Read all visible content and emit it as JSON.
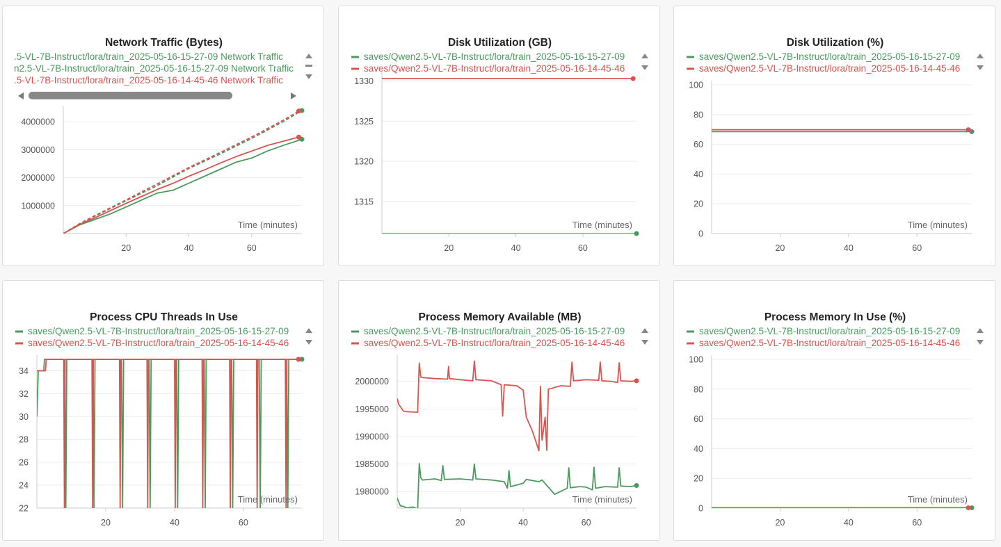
{
  "colors": {
    "green": "#4a9a5e",
    "red": "#d9534f",
    "grid": "#ececec",
    "axis": "#cccccc"
  },
  "panels": [
    {
      "title": "Network Traffic (Bytes)",
      "legend": [
        {
          "text": ".5-VL-7B-Instruct/lora/train_2025-05-16-15-27-09 Network Traffic",
          "color": "green"
        },
        {
          "text": "n2.5-VL-7B-Instruct/lora/train_2025-05-16-15-27-09 Network Traffic",
          "color": "green"
        },
        {
          "text": ".5-VL-7B-Instruct/lora/train_2025-05-16-14-45-46 Network Traffic",
          "color": "red"
        }
      ],
      "xlabel": "Time (minutes)"
    },
    {
      "title": "Disk Utilization (GB)",
      "legend": [
        {
          "text": "saves/Qwen2.5-VL-7B-Instruct/lora/train_2025-05-16-15-27-09",
          "color": "green"
        },
        {
          "text": "saves/Qwen2.5-VL-7B-Instruct/lora/train_2025-05-16-14-45-46",
          "color": "red"
        }
      ],
      "xlabel": "Time (minutes)"
    },
    {
      "title": "Disk Utilization (%)",
      "legend": [
        {
          "text": "saves/Qwen2.5-VL-7B-Instruct/lora/train_2025-05-16-15-27-09",
          "color": "green"
        },
        {
          "text": "saves/Qwen2.5-VL-7B-Instruct/lora/train_2025-05-16-14-45-46",
          "color": "red"
        }
      ],
      "xlabel": "Time (minutes)"
    },
    {
      "title": "Process CPU Threads In Use",
      "legend": [
        {
          "text": "saves/Qwen2.5-VL-7B-Instruct/lora/train_2025-05-16-15-27-09",
          "color": "green"
        },
        {
          "text": "saves/Qwen2.5-VL-7B-Instruct/lora/train_2025-05-16-14-45-46",
          "color": "red"
        }
      ],
      "xlabel": "Time (minutes)"
    },
    {
      "title": "Process Memory Available (MB)",
      "legend": [
        {
          "text": "saves/Qwen2.5-VL-7B-Instruct/lora/train_2025-05-16-15-27-09",
          "color": "green"
        },
        {
          "text": "saves/Qwen2.5-VL-7B-Instruct/lora/train_2025-05-16-14-45-46",
          "color": "red"
        }
      ],
      "xlabel": "Time (minutes)"
    },
    {
      "title": "Process Memory In Use (%)",
      "legend": [
        {
          "text": "saves/Qwen2.5-VL-7B-Instruct/lora/train_2025-05-16-15-27-09",
          "color": "green"
        },
        {
          "text": "saves/Qwen2.5-VL-7B-Instruct/lora/train_2025-05-16-14-45-46",
          "color": "red"
        }
      ],
      "xlabel": "Time (minutes)"
    }
  ],
  "chart_data": [
    {
      "type": "line",
      "title": "Network Traffic (Bytes)",
      "xlabel": "Time (minutes)",
      "ylabel": "",
      "xlim": [
        0,
        76
      ],
      "ylim": [
        0,
        4400000
      ],
      "xticks": [
        20,
        40,
        60
      ],
      "yticks": [
        1000000,
        2000000,
        3000000,
        4000000
      ],
      "ytick_labels": [
        "1000000",
        "2000000",
        "3000000",
        "4000000"
      ],
      "series": [
        {
          "name": "train_2025-05-16-15-27-09 Network Traffic (sent)",
          "color": "green",
          "dash": true,
          "x": [
            0,
            5,
            10,
            20,
            30,
            40,
            50,
            60,
            70,
            76
          ],
          "y": [
            0,
            330000,
            620000,
            1170000,
            1720000,
            2330000,
            2850000,
            3400000,
            4000000,
            4400000
          ]
        },
        {
          "name": "train_2025-05-16-15-27-09 Network Traffic (recv)",
          "color": "green",
          "dash": false,
          "x": [
            0,
            5,
            10,
            15,
            20,
            25,
            30,
            35,
            40,
            45,
            50,
            55,
            60,
            65,
            70,
            76
          ],
          "y": [
            0,
            300000,
            500000,
            700000,
            950000,
            1200000,
            1450000,
            1550000,
            1800000,
            2050000,
            2300000,
            2550000,
            2700000,
            2950000,
            3150000,
            3370000
          ]
        },
        {
          "name": "train_2025-05-16-14-45-46 Network Traffic (sent)",
          "color": "red",
          "dash": true,
          "x": [
            0,
            5,
            10,
            20,
            30,
            40,
            50,
            60,
            70,
            75
          ],
          "y": [
            0,
            340000,
            640000,
            1200000,
            1780000,
            2360000,
            2900000,
            3450000,
            4050000,
            4380000
          ]
        },
        {
          "name": "train_2025-05-16-14-45-46 Network Traffic (recv)",
          "color": "red",
          "dash": false,
          "x": [
            0,
            5,
            10,
            15,
            20,
            25,
            30,
            35,
            40,
            45,
            50,
            55,
            60,
            65,
            70,
            75
          ],
          "y": [
            0,
            320000,
            560000,
            820000,
            1080000,
            1330000,
            1580000,
            1800000,
            2050000,
            2280000,
            2520000,
            2750000,
            2950000,
            3150000,
            3300000,
            3450000
          ]
        }
      ]
    },
    {
      "type": "line",
      "title": "Disk Utilization (GB)",
      "xlabel": "Time (minutes)",
      "ylabel": "",
      "xlim": [
        0,
        76
      ],
      "ylim": [
        1311,
        1331
      ],
      "xticks": [
        20,
        40,
        60
      ],
      "yticks": [
        1315,
        1320,
        1325,
        1330
      ],
      "ytick_labels": [
        "1315",
        "1320",
        "1325",
        "1330"
      ],
      "series": [
        {
          "name": "saves/Qwen2.5-VL-7B-Instruct/lora/train_2025-05-16-15-27-09",
          "color": "green",
          "x": [
            0,
            76
          ],
          "y": [
            1311,
            1311
          ]
        },
        {
          "name": "saves/Qwen2.5-VL-7B-Instruct/lora/train_2025-05-16-14-45-46",
          "color": "red",
          "x": [
            0,
            75
          ],
          "y": [
            1330.3,
            1330.3
          ]
        }
      ]
    },
    {
      "type": "line",
      "title": "Disk Utilization (%)",
      "xlabel": "Time (minutes)",
      "ylabel": "",
      "xlim": [
        0,
        76
      ],
      "ylim": [
        0,
        100
      ],
      "xticks": [
        20,
        40,
        60
      ],
      "yticks": [
        0,
        20,
        40,
        60,
        80,
        100
      ],
      "ytick_labels": [
        "0",
        "20",
        "40",
        "60",
        "80",
        "100"
      ],
      "series": [
        {
          "name": "saves/Qwen2.5-VL-7B-Instruct/lora/train_2025-05-16-15-27-09",
          "color": "green",
          "x": [
            0,
            76
          ],
          "y": [
            68.5,
            68.5
          ]
        },
        {
          "name": "saves/Qwen2.5-VL-7B-Instruct/lora/train_2025-05-16-14-45-46",
          "color": "red",
          "x": [
            0,
            75
          ],
          "y": [
            69.8,
            69.8
          ]
        }
      ]
    },
    {
      "type": "line",
      "title": "Process CPU Threads In Use",
      "xlabel": "Time (minutes)",
      "ylabel": "",
      "xlim": [
        0,
        77
      ],
      "ylim": [
        22,
        35
      ],
      "xticks": [
        20,
        40,
        60
      ],
      "yticks": [
        22,
        24,
        26,
        28,
        30,
        32,
        34
      ],
      "ytick_labels": [
        "22",
        "24",
        "26",
        "28",
        "30",
        "32",
        "34"
      ],
      "series": [
        {
          "name": "saves/Qwen2.5-VL-7B-Instruct/lora/train_2025-05-16-15-27-09",
          "color": "green",
          "x": [
            0,
            0.4,
            2,
            2.2,
            8.1,
            8.4,
            8.7,
            16.3,
            16.6,
            16.9,
            24.6,
            24.9,
            25.2,
            32.6,
            32.9,
            33.2,
            40.6,
            40.9,
            41.2,
            48.6,
            48.9,
            49.2,
            56.6,
            56.9,
            57.2,
            64.6,
            64.9,
            65.2,
            72.6,
            72.9,
            73.2,
            77
          ],
          "y": [
            30,
            34,
            34,
            35,
            35,
            22,
            35,
            35,
            22,
            35,
            35,
            22,
            35,
            35,
            22,
            35,
            35,
            22,
            35,
            35,
            22,
            35,
            35,
            22,
            35,
            35,
            22,
            35,
            35,
            22,
            35,
            35
          ]
        },
        {
          "name": "saves/Qwen2.5-VL-7B-Instruct/lora/train_2025-05-16-14-45-46",
          "color": "red",
          "x": [
            0,
            2.5,
            2.7,
            7.8,
            8.0,
            8.2,
            16.0,
            16.2,
            16.4,
            24.0,
            24.2,
            24.4,
            32.0,
            32.2,
            32.4,
            40.0,
            40.2,
            40.4,
            48.0,
            48.2,
            48.4,
            56.0,
            56.2,
            56.4,
            63.8,
            64.0,
            64.2,
            72.2,
            72.4,
            72.6,
            76
          ],
          "y": [
            34,
            34,
            35,
            35,
            22,
            35,
            35,
            22,
            35,
            35,
            22,
            35,
            35,
            22,
            35,
            35,
            22,
            35,
            35,
            22,
            35,
            35,
            22,
            35,
            35,
            22,
            35,
            35,
            22,
            35,
            35
          ]
        }
      ]
    },
    {
      "type": "line",
      "title": "Process Memory Available (MB)",
      "xlabel": "Time (minutes)",
      "ylabel": "",
      "xlim": [
        0,
        76
      ],
      "ylim": [
        1977000,
        2004000
      ],
      "xticks": [
        20,
        40,
        60
      ],
      "yticks": [
        1980000,
        1985000,
        1990000,
        1995000,
        2000000
      ],
      "ytick_labels": [
        "1980000",
        "1985000",
        "1990000",
        "1995000",
        "2000000"
      ],
      "series": [
        {
          "name": "saves/Qwen2.5-VL-7B-Instruct/lora/train_2025-05-16-15-27-09",
          "color": "green",
          "x": [
            0,
            1,
            2,
            3,
            5,
            6.5,
            7,
            7.5,
            8,
            12,
            14,
            14.5,
            15,
            20,
            24,
            24.5,
            25,
            30,
            34,
            35,
            35.5,
            36,
            38,
            40,
            41,
            44,
            45,
            46,
            50,
            54,
            54.5,
            55,
            58,
            60,
            62,
            62.5,
            63,
            66,
            70,
            70.5,
            71,
            74,
            76
          ],
          "y": [
            1978800,
            1977400,
            1977300,
            1977000,
            1977200,
            1976800,
            1985100,
            1982500,
            1982100,
            1982300,
            1982000,
            1984700,
            1982200,
            1982300,
            1982100,
            1985000,
            1982300,
            1982100,
            1981800,
            1980600,
            1983800,
            1980900,
            1981200,
            1981500,
            1982200,
            1981900,
            1981800,
            1982100,
            1979500,
            1980600,
            1984300,
            1980700,
            1980900,
            1980800,
            1980300,
            1984400,
            1980600,
            1980900,
            1980800,
            1984300,
            1981000,
            1980900,
            1981100
          ]
        },
        {
          "name": "saves/Qwen2.5-VL-7B-Instruct/lora/train_2025-05-16-14-45-46",
          "color": "red",
          "x": [
            0,
            0.5,
            2,
            3,
            6.5,
            7,
            7.5,
            8,
            12,
            16,
            16.3,
            16.6,
            20,
            24,
            24.5,
            25,
            30,
            33,
            33.5,
            34,
            36,
            38,
            40,
            41,
            43,
            45,
            45.5,
            46,
            47,
            47.5,
            48,
            49,
            49.5,
            50,
            52,
            55,
            55.5,
            56,
            60,
            64,
            64.5,
            65,
            68,
            70,
            70.5,
            71,
            74,
            76
          ],
          "y": [
            1996900,
            1995800,
            1994600,
            1994500,
            1994400,
            2003300,
            2000800,
            2000700,
            2000500,
            2000400,
            2002700,
            2000500,
            2000300,
            2000100,
            2003700,
            2000300,
            2000100,
            1999400,
            1993700,
            1999400,
            1999300,
            1999200,
            1998400,
            1993500,
            1990900,
            1987400,
            1999100,
            1989300,
            1993500,
            1987500,
            1998600,
            1998700,
            1998800,
            1998900,
            1999200,
            1999100,
            2003500,
            2000100,
            2000300,
            2000200,
            2003500,
            2000100,
            2000000,
            1999800,
            2003400,
            2000100,
            2000000,
            2000100
          ]
        }
      ]
    },
    {
      "type": "line",
      "title": "Process Memory In Use (%)",
      "xlabel": "Time (minutes)",
      "ylabel": "",
      "xlim": [
        0,
        76
      ],
      "ylim": [
        0,
        100
      ],
      "xticks": [
        20,
        40,
        60
      ],
      "yticks": [
        0,
        20,
        40,
        60,
        80,
        100
      ],
      "ytick_labels": [
        "0",
        "20",
        "40",
        "60",
        "80",
        "100"
      ],
      "series": [
        {
          "name": "saves/Qwen2.5-VL-7B-Instruct/lora/train_2025-05-16-15-27-09",
          "color": "green",
          "x": [
            0,
            76
          ],
          "y": [
            0.2,
            0.2
          ]
        },
        {
          "name": "saves/Qwen2.5-VL-7B-Instruct/lora/train_2025-05-16-14-45-46",
          "color": "red",
          "x": [
            0,
            75
          ],
          "y": [
            0.2,
            0.2
          ]
        }
      ]
    }
  ]
}
